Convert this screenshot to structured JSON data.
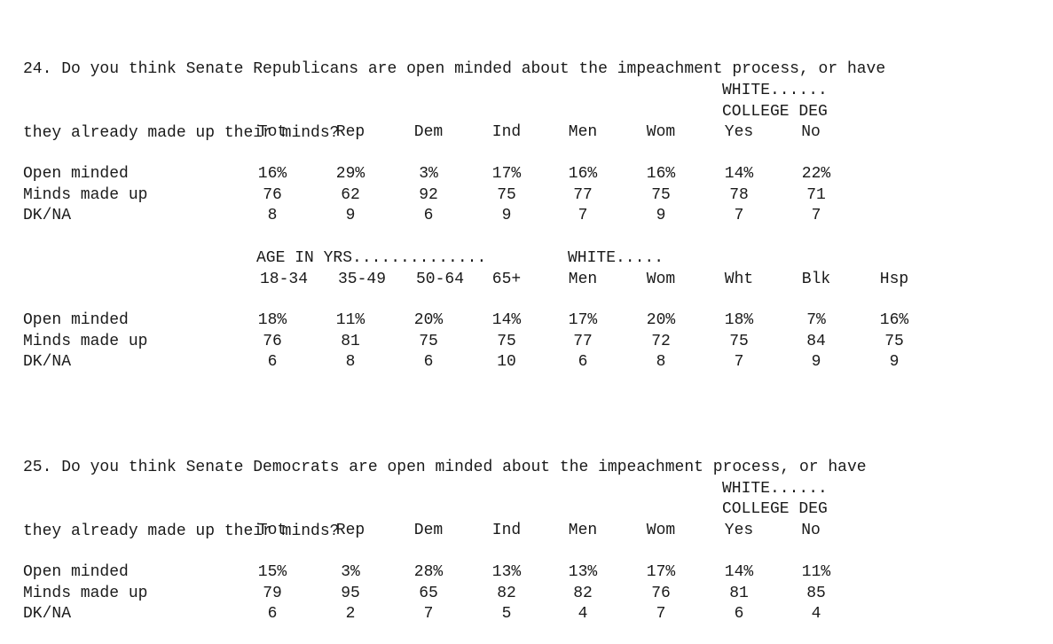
{
  "questions": [
    {
      "line1": "24. Do you think Senate Republicans are open minded about the impeachment process, or have",
      "line2": "they already made up their minds?",
      "header": {
        "super1": "WHITE......",
        "super2": "COLLEGE DEG",
        "cols": [
          "Tot",
          "Rep",
          "Dem",
          "Ind",
          "Men",
          "Wom",
          "Yes",
          "No"
        ]
      },
      "rows": [
        {
          "label": "Open minded",
          "values": [
            "16%",
            "29%",
            "3%",
            "17%",
            "16%",
            "16%",
            "14%",
            "22%"
          ]
        },
        {
          "label": "Minds made up",
          "values": [
            "76",
            "62",
            "92",
            "75",
            "77",
            "75",
            "78",
            "71"
          ]
        },
        {
          "label": "DK/NA",
          "values": [
            "8",
            "9",
            "6",
            "9",
            "7",
            "9",
            "7",
            "7"
          ]
        }
      ],
      "section2": {
        "super_age": "AGE IN YRS..............",
        "super_white": "WHITE.....",
        "cols": [
          "18-34",
          "35-49",
          "50-64",
          "65+",
          "Men",
          "Wom",
          "Wht",
          "Blk",
          "Hsp"
        ],
        "rows": [
          {
            "label": "Open minded",
            "values": [
              "18%",
              "11%",
              "20%",
              "14%",
              "17%",
              "20%",
              "18%",
              "7%",
              "16%"
            ]
          },
          {
            "label": "Minds made up",
            "values": [
              "76",
              "81",
              "75",
              "75",
              "77",
              "72",
              "75",
              "84",
              "75"
            ]
          },
          {
            "label": "DK/NA",
            "values": [
              "6",
              "8",
              "6",
              "10",
              "6",
              "8",
              "7",
              "9",
              "9"
            ]
          }
        ]
      }
    },
    {
      "line1": "25. Do you think Senate Democrats are open minded about the impeachment process, or have",
      "line2": "they already made up their minds?",
      "header": {
        "super1": "WHITE......",
        "super2": "COLLEGE DEG",
        "cols": [
          "Tot",
          "Rep",
          "Dem",
          "Ind",
          "Men",
          "Wom",
          "Yes",
          "No"
        ]
      },
      "rows": [
        {
          "label": "Open minded",
          "values": [
            "15%",
            "3%",
            "28%",
            "13%",
            "13%",
            "17%",
            "14%",
            "11%"
          ]
        },
        {
          "label": "Minds made up",
          "values": [
            "79",
            "95",
            "65",
            "82",
            "82",
            "76",
            "81",
            "85"
          ]
        },
        {
          "label": "DK/NA",
          "values": [
            "6",
            "2",
            "7",
            "5",
            "4",
            "7",
            "6",
            "4"
          ]
        }
      ]
    }
  ]
}
